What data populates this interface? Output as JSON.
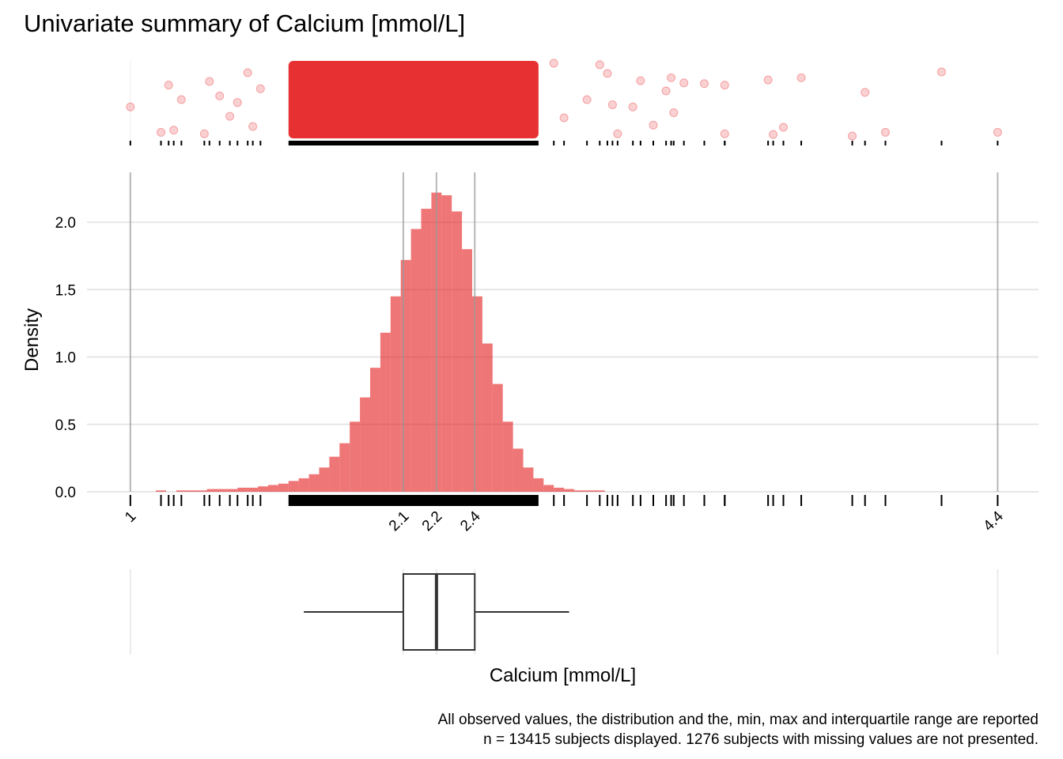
{
  "title": "Univariate summary of Calcium [mmol/L]",
  "chart_data": [
    {
      "type": "strip",
      "color": "#e41a1c",
      "xlim": [
        0.83,
        4.56
      ],
      "ylim": [
        0,
        1
      ],
      "x": [
        1.0,
        1.12,
        1.15,
        1.17,
        1.2,
        1.29,
        1.31,
        1.35,
        1.39,
        1.42,
        1.46,
        1.48,
        1.51,
        2.66,
        2.7,
        2.79,
        2.84,
        2.87,
        2.89,
        2.91,
        2.97,
        3.0,
        3.05,
        3.1,
        3.12,
        3.13,
        3.17,
        3.25,
        3.33,
        3.33,
        3.5,
        3.52,
        3.56,
        3.63,
        3.83,
        3.88,
        3.96,
        4.18,
        4.4
      ],
      "y": [
        0.4,
        0.05,
        0.7,
        0.08,
        0.5,
        0.03,
        0.75,
        0.55,
        0.27,
        0.46,
        0.87,
        0.13,
        0.65,
        1,
        0.25,
        0.5,
        0.98,
        0.86,
        0.43,
        0.03,
        0.4,
        0.76,
        0.15,
        0.62,
        0.8,
        0.32,
        0.73,
        0.72,
        0.7,
        0.03,
        0.77,
        0.02,
        0.12,
        0.8,
        0,
        0.6,
        0.05,
        0.88,
        0.05
      ],
      "dense_range": [
        1.62,
        2.6
      ]
    },
    {
      "type": "histogram",
      "color": "#e41a1c",
      "ylabel": "Density",
      "grid": true,
      "xlim": [
        0.83,
        4.56
      ],
      "ylim": [
        -0.05,
        2.37
      ],
      "yticks": [
        {
          "value": 0,
          "label": "0.0"
        },
        0.5,
        {
          "value": 1,
          "label": "1.0"
        },
        1.5,
        {
          "value": 2,
          "label": "2.0"
        }
      ],
      "xticks": [
        1,
        {
          "value": 2.07,
          "label": "2.1"
        },
        2.2,
        {
          "value": 2.35,
          "label": "2.4"
        },
        4.4
      ],
      "bins": [
        1.1,
        1.14,
        1.18,
        1.22,
        1.26,
        1.3,
        1.34,
        1.38,
        1.42,
        1.46,
        1.5,
        1.54,
        1.58,
        1.62,
        1.66,
        1.7,
        1.74,
        1.78,
        1.82,
        1.86,
        1.9,
        1.94,
        1.98,
        2.02,
        2.06,
        2.1,
        2.14,
        2.18,
        2.22,
        2.26,
        2.3,
        2.34,
        2.38,
        2.42,
        2.46,
        2.5,
        2.54,
        2.58,
        2.62,
        2.66,
        2.7,
        2.74,
        2.78,
        2.82,
        2.86,
        2.9,
        2.94,
        2.98,
        3.02,
        3.06,
        3.1
      ],
      "values": [
        0.01,
        0,
        0.01,
        0.01,
        0.01,
        0.02,
        0.02,
        0.02,
        0.03,
        0.03,
        0.04,
        0.05,
        0.06,
        0.08,
        0.1,
        0.13,
        0.18,
        0.26,
        0.36,
        0.52,
        0.7,
        0.92,
        1.18,
        1.45,
        1.72,
        1.95,
        2.1,
        2.22,
        2.2,
        2.08,
        1.8,
        1.45,
        1.1,
        0.8,
        0.52,
        0.32,
        0.18,
        0.1,
        0.05,
        0.03,
        0.02,
        0.01,
        0.01,
        0.01,
        0,
        0,
        0,
        0,
        0,
        0
      ]
    },
    {
      "type": "box",
      "xlabel": "Calcium [mmol/L]",
      "xlim": [
        0.83,
        4.56
      ],
      "whisker_low": 1.68,
      "q1": 2.07,
      "median": 2.2,
      "q3": 2.35,
      "whisker_high": 2.72,
      "xticks": [
        1,
        {
          "value": 2.07,
          "label": "2.1"
        },
        2.2,
        {
          "value": 2.35,
          "label": "2.4"
        },
        4.4
      ]
    }
  ],
  "caption": [
    "All observed values, the distribution and the, min, max and interquartile range are reported",
    "n = 13415 subjects displayed. 1276 subjects with missing values are not presented."
  ]
}
